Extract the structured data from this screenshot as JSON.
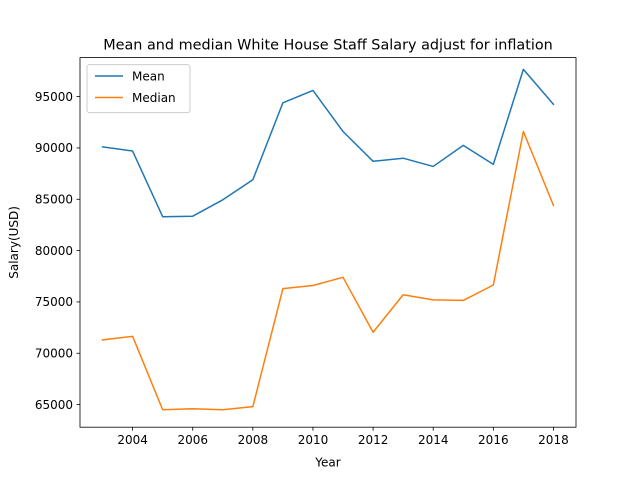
{
  "chart_data": {
    "type": "line",
    "title": "Mean and median White House Staff Salary adjust for inflation",
    "xlabel": "Year",
    "ylabel": "Salary(USD)",
    "xlim": [
      2002.25,
      2018.75
    ],
    "ylim": [
      62800,
      98800
    ],
    "x_ticks": [
      2004,
      2006,
      2008,
      2010,
      2012,
      2014,
      2016,
      2018
    ],
    "y_ticks": [
      65000,
      70000,
      75000,
      80000,
      85000,
      90000,
      95000
    ],
    "grid": false,
    "legend_position": "upper-left",
    "x": [
      2003,
      2004,
      2005,
      2006,
      2007,
      2008,
      2009,
      2010,
      2011,
      2012,
      2013,
      2014,
      2015,
      2016,
      2017,
      2018
    ],
    "series": [
      {
        "name": "Mean",
        "color": "#1f77b4",
        "values": [
          90100,
          89700,
          83300,
          83350,
          84950,
          86900,
          94400,
          95600,
          91600,
          88700,
          89000,
          88200,
          90250,
          88400,
          97650,
          94250
        ]
      },
      {
        "name": "Median",
        "color": "#ff7f0e",
        "values": [
          71300,
          71650,
          64500,
          64600,
          64500,
          64800,
          76300,
          76600,
          77400,
          72050,
          75700,
          75200,
          75150,
          76650,
          91600,
          84400
        ]
      }
    ]
  }
}
